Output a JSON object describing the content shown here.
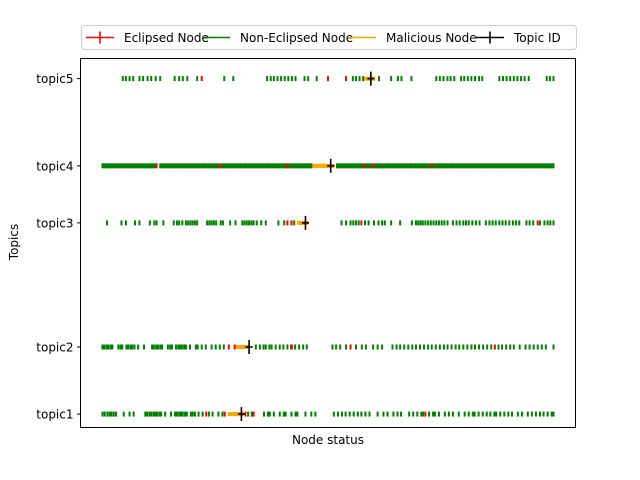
{
  "chart_data": {
    "type": "scatter",
    "title": "",
    "xlabel": "Node status",
    "ylabel": "Topics",
    "grid": false,
    "legend_placement": "top-center",
    "x_ticks_visible": false,
    "xlim": [
      0,
      1
    ],
    "y_ticks": [
      {
        "label": "topic1",
        "value": 1
      },
      {
        "label": "topic2",
        "value": 2
      },
      {
        "label": "topic3",
        "value": 3.85
      },
      {
        "label": "topic4",
        "value": 4.7
      },
      {
        "label": "topic5",
        "value": 6
      }
    ],
    "ylim": [
      0.8,
      6.3
    ],
    "colors": {
      "eclipsed": "#ff0000",
      "non_eclipsed": "#008000",
      "malicious": "#ffa500",
      "topic_id": "#000000"
    },
    "legend": [
      {
        "key": "eclipsed",
        "label": "Eclipsed Node"
      },
      {
        "key": "non_eclipsed",
        "label": "Non-Eclipsed Node"
      },
      {
        "key": "malicious",
        "label": "Malicious Node"
      },
      {
        "key": "topic_id",
        "label": "Topic ID"
      }
    ],
    "series": [
      {
        "topic": "topic1",
        "topic_id_x": 0.308,
        "malicious": [
          0.283,
          0.287,
          0.291,
          0.295,
          0.299,
          0.303,
          0.307,
          0.311
        ],
        "eclipsed": [
          0.23,
          0.271,
          0.317,
          0.335,
          0.716
        ],
        "non_eclipsed": [
          0.0,
          0.005,
          0.011,
          0.016,
          0.02,
          0.025,
          0.03,
          0.047,
          0.06,
          0.069,
          0.095,
          0.099,
          0.104,
          0.108,
          0.113,
          0.117,
          0.121,
          0.126,
          0.13,
          0.139,
          0.152,
          0.161,
          0.165,
          0.17,
          0.174,
          0.178,
          0.183,
          0.187,
          0.196,
          0.2,
          0.205,
          0.213,
          0.222,
          0.236,
          0.244,
          0.257,
          0.266,
          0.323,
          0.331,
          0.358,
          0.367,
          0.371,
          0.38,
          0.393,
          0.402,
          0.406,
          0.419,
          0.428,
          0.432,
          0.45,
          0.463,
          0.472,
          0.513,
          0.522,
          0.531,
          0.539,
          0.548,
          0.557,
          0.566,
          0.574,
          0.583,
          0.592,
          0.61,
          0.623,
          0.632,
          0.645,
          0.654,
          0.662,
          0.68,
          0.689,
          0.698,
          0.707,
          0.711,
          0.724,
          0.733,
          0.737,
          0.746,
          0.759,
          0.768,
          0.777,
          0.79,
          0.803,
          0.812,
          0.821,
          0.825,
          0.834,
          0.843,
          0.852,
          0.86,
          0.869,
          0.873,
          0.882,
          0.891,
          0.9,
          0.908,
          0.921,
          0.93,
          0.943,
          0.952,
          0.961,
          0.97,
          0.978,
          0.987,
          0.996,
          1.0
        ]
      },
      {
        "topic": "topic2",
        "topic_id_x": 0.325,
        "malicious": [
          0.3,
          0.305,
          0.31,
          0.315,
          0.32
        ],
        "eclipsed": [
          0.28,
          0.293,
          0.42,
          0.55,
          0.87
        ],
        "non_eclipsed": [
          0.0,
          0.004,
          0.009,
          0.013,
          0.018,
          0.022,
          0.035,
          0.04,
          0.044,
          0.053,
          0.057,
          0.062,
          0.066,
          0.071,
          0.079,
          0.092,
          0.11,
          0.114,
          0.119,
          0.123,
          0.128,
          0.132,
          0.145,
          0.15,
          0.154,
          0.163,
          0.168,
          0.172,
          0.176,
          0.181,
          0.185,
          0.194,
          0.207,
          0.211,
          0.22,
          0.229,
          0.242,
          0.251,
          0.26,
          0.269,
          0.34,
          0.349,
          0.357,
          0.362,
          0.37,
          0.375,
          0.384,
          0.393,
          0.401,
          0.41,
          0.418,
          0.427,
          0.436,
          0.445,
          0.453,
          0.51,
          0.518,
          0.527,
          0.54,
          0.562,
          0.575,
          0.584,
          0.6,
          0.61,
          0.62,
          0.643,
          0.652,
          0.66,
          0.669,
          0.678,
          0.687,
          0.695,
          0.704,
          0.713,
          0.722,
          0.73,
          0.739,
          0.748,
          0.757,
          0.765,
          0.774,
          0.783,
          0.791,
          0.8,
          0.809,
          0.818,
          0.826,
          0.835,
          0.844,
          0.853,
          0.862,
          0.878,
          0.886,
          0.895,
          0.904,
          0.912,
          0.925,
          0.938,
          0.947,
          0.956,
          0.965,
          0.974,
          0.983,
          1.0
        ]
      },
      {
        "topic": "topic3",
        "topic_id_x": 0.45,
        "malicious": [
          0.436,
          0.44,
          0.444,
          0.448,
          0.452
        ],
        "eclipsed": [
          0.41,
          0.419,
          0.574,
          0.965
        ],
        "non_eclipsed": [
          0.01,
          0.042,
          0.052,
          0.072,
          0.082,
          0.105,
          0.115,
          0.12,
          0.135,
          0.158,
          0.165,
          0.17,
          0.177,
          0.185,
          0.19,
          0.195,
          0.2,
          0.205,
          0.21,
          0.232,
          0.237,
          0.242,
          0.247,
          0.252,
          0.262,
          0.267,
          0.283,
          0.295,
          0.31,
          0.315,
          0.32,
          0.325,
          0.33,
          0.335,
          0.342,
          0.352,
          0.362,
          0.39,
          0.403,
          0.425,
          0.53,
          0.54,
          0.55,
          0.556,
          0.562,
          0.568,
          0.582,
          0.59,
          0.602,
          0.612,
          0.62,
          0.626,
          0.64,
          0.66,
          0.686,
          0.695,
          0.7,
          0.705,
          0.71,
          0.716,
          0.722,
          0.728,
          0.734,
          0.74,
          0.746,
          0.752,
          0.758,
          0.765,
          0.777,
          0.785,
          0.792,
          0.8,
          0.806,
          0.812,
          0.82,
          0.828,
          0.836,
          0.85,
          0.858,
          0.865,
          0.872,
          0.88,
          0.887,
          0.894,
          0.902,
          0.91,
          0.917,
          0.924,
          0.94,
          0.947,
          0.955,
          0.97,
          0.98,
          0.987,
          0.993,
          1.0
        ]
      },
      {
        "topic": "topic4",
        "topic_id_x": 0.506,
        "malicious": [
          0.47,
          0.474,
          0.478,
          0.482,
          0.486,
          0.49,
          0.494,
          0.498,
          0.502,
          0.506,
          0.51
        ],
        "eclipsed": [
          0.12,
          0.26,
          0.41,
          0.58,
          0.6,
          0.73
        ],
        "non_eclipsed": [
          0.0,
          0.004,
          0.008,
          0.012,
          0.016,
          0.02,
          0.024,
          0.028,
          0.032,
          0.036,
          0.04,
          0.044,
          0.048,
          0.052,
          0.056,
          0.06,
          0.064,
          0.068,
          0.072,
          0.076,
          0.08,
          0.084,
          0.088,
          0.092,
          0.096,
          0.1,
          0.104,
          0.108,
          0.112,
          0.116,
          0.128,
          0.132,
          0.136,
          0.14,
          0.144,
          0.148,
          0.152,
          0.156,
          0.16,
          0.164,
          0.168,
          0.172,
          0.176,
          0.18,
          0.184,
          0.188,
          0.192,
          0.196,
          0.2,
          0.204,
          0.208,
          0.212,
          0.216,
          0.22,
          0.224,
          0.228,
          0.232,
          0.236,
          0.24,
          0.244,
          0.248,
          0.252,
          0.256,
          0.264,
          0.268,
          0.272,
          0.276,
          0.28,
          0.284,
          0.288,
          0.292,
          0.296,
          0.3,
          0.304,
          0.308,
          0.312,
          0.316,
          0.32,
          0.324,
          0.328,
          0.332,
          0.336,
          0.34,
          0.344,
          0.348,
          0.352,
          0.356,
          0.36,
          0.364,
          0.368,
          0.372,
          0.376,
          0.38,
          0.384,
          0.388,
          0.392,
          0.396,
          0.4,
          0.404,
          0.408,
          0.412,
          0.416,
          0.42,
          0.424,
          0.428,
          0.432,
          0.436,
          0.44,
          0.444,
          0.448,
          0.452,
          0.456,
          0.46,
          0.464,
          0.52,
          0.524,
          0.528,
          0.532,
          0.536,
          0.54,
          0.544,
          0.548,
          0.552,
          0.556,
          0.56,
          0.564,
          0.568,
          0.572,
          0.576,
          0.584,
          0.588,
          0.592,
          0.596,
          0.604,
          0.608,
          0.612,
          0.616,
          0.62,
          0.624,
          0.628,
          0.632,
          0.636,
          0.64,
          0.644,
          0.648,
          0.652,
          0.656,
          0.66,
          0.664,
          0.668,
          0.672,
          0.676,
          0.68,
          0.684,
          0.688,
          0.692,
          0.696,
          0.7,
          0.704,
          0.708,
          0.712,
          0.716,
          0.72,
          0.724,
          0.728,
          0.732,
          0.736,
          0.74,
          0.744,
          0.748,
          0.752,
          0.756,
          0.76,
          0.764,
          0.768,
          0.772,
          0.776,
          0.78,
          0.784,
          0.788,
          0.792,
          0.796,
          0.8,
          0.804,
          0.808,
          0.812,
          0.816,
          0.82,
          0.824,
          0.828,
          0.832,
          0.836,
          0.84,
          0.844,
          0.848,
          0.852,
          0.856,
          0.86,
          0.864,
          0.868,
          0.872,
          0.876,
          0.88,
          0.884,
          0.888,
          0.892,
          0.896,
          0.9,
          0.904,
          0.908,
          0.912,
          0.916,
          0.92,
          0.924,
          0.928,
          0.932,
          0.936,
          0.94,
          0.944,
          0.948,
          0.952,
          0.956,
          0.96,
          0.964,
          0.968,
          0.972,
          0.976,
          0.98,
          0.984,
          0.988,
          0.992,
          0.996,
          1.0
        ]
      },
      {
        "topic": "topic5",
        "topic_id_x": 0.595,
        "malicious": [
          0.585,
          0.59,
          0.595,
          0.6
        ],
        "eclipsed": [
          0.22,
          0.5,
          0.54
        ],
        "non_eclipsed": [
          0.045,
          0.052,
          0.06,
          0.068,
          0.082,
          0.09,
          0.1,
          0.108,
          0.118,
          0.128,
          0.16,
          0.17,
          0.178,
          0.188,
          0.21,
          0.27,
          0.29,
          0.365,
          0.373,
          0.38,
          0.388,
          0.396,
          0.404,
          0.412,
          0.42,
          0.428,
          0.448,
          0.456,
          0.475,
          0.555,
          0.562,
          0.57,
          0.578,
          0.613,
          0.64,
          0.655,
          0.663,
          0.685,
          0.74,
          0.748,
          0.756,
          0.765,
          0.772,
          0.78,
          0.795,
          0.802,
          0.81,
          0.818,
          0.826,
          0.835,
          0.842,
          0.88,
          0.888,
          0.896,
          0.904,
          0.912,
          0.92,
          0.928,
          0.936,
          0.945,
          0.985,
          0.992,
          1.0
        ]
      }
    ]
  }
}
